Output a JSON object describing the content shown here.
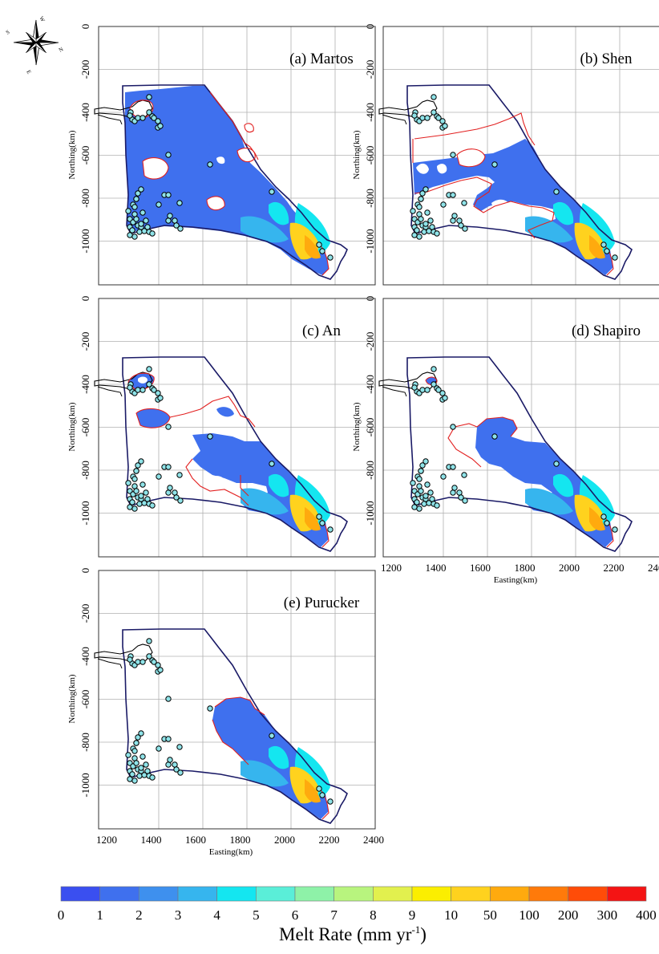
{
  "panels": [
    {
      "id": "a",
      "title": "(a) Martos",
      "show_xlabel": false
    },
    {
      "id": "b",
      "title": "(b) Shen",
      "show_xlabel": false
    },
    {
      "id": "c",
      "title": "(c) An",
      "show_xlabel": false
    },
    {
      "id": "d",
      "title": "(d) Shapiro",
      "show_xlabel": true
    },
    {
      "id": "e",
      "title": "(e) Purucker",
      "show_xlabel": true
    }
  ],
  "axes": {
    "x_label": "Easting(km)",
    "y_label": "Northing(km)",
    "x_ticks": [
      "1200",
      "1400",
      "1600",
      "1800",
      "2000",
      "2200",
      "2400"
    ],
    "y_ticks": [
      "0",
      "-200",
      "-400",
      "-600",
      "-800",
      "-1000"
    ],
    "x_range": [
      1200,
      2400
    ],
    "y_range": [
      -1200,
      0
    ]
  },
  "compass": {
    "labels": [
      "N",
      "S",
      "E",
      "W"
    ],
    "icon": "compass-rose-icon"
  },
  "colorbar": {
    "title_main": "Melt Rate (mm yr",
    "title_sup": "-1",
    "title_end": ")",
    "ticks": [
      "0",
      "1",
      "2",
      "3",
      "4",
      "5",
      "6",
      "7",
      "8",
      "9",
      "10",
      "50",
      "100",
      "200",
      "300",
      "400"
    ],
    "colors": [
      "#3a4ff0",
      "#3f70ee",
      "#3e90ee",
      "#36b5ee",
      "#14e6f0",
      "#5aeed8",
      "#8ef2a8",
      "#b8f47e",
      "#e2f04e",
      "#fbee00",
      "#ffd21e",
      "#ffaa0e",
      "#ff7a0a",
      "#ff4c08",
      "#f41414"
    ]
  },
  "colors": {
    "boundary": "#1a1a66",
    "contour": "#e22020",
    "coast": "#000000",
    "dot": "#8fe3e8",
    "grid": "#b0b0b0"
  }
}
